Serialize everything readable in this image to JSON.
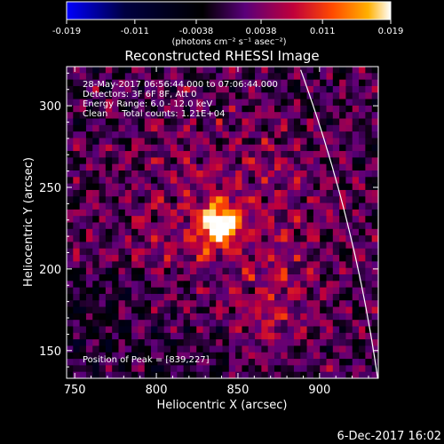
{
  "colorbar": {
    "ticks": [
      "-0.019",
      "-0.011",
      "-0.0038",
      "0.0038",
      "0.011",
      "0.019"
    ],
    "tick_values": [
      -0.019,
      -0.011,
      -0.0038,
      0.0038,
      0.011,
      0.019
    ],
    "range": [
      -0.019,
      0.019
    ],
    "units": "(photons cm⁻² s⁻¹ asec⁻²)",
    "colors": [
      "#0000ff",
      "#000000",
      "#5a007a",
      "#c0003a",
      "#ff4a00",
      "#ffb000",
      "#ffffff"
    ]
  },
  "chart_data": {
    "type": "heatmap",
    "title": "Reconstructed RHESSI Image",
    "xlabel": "Heliocentric X (arcsec)",
    "ylabel": "Heliocentric Y (arcsec)",
    "xlim": [
      745,
      936
    ],
    "ylim": [
      133,
      324
    ],
    "x_ticks": [
      750,
      800,
      850,
      900
    ],
    "y_ticks": [
      150,
      200,
      250,
      300
    ],
    "info_lines": [
      "28-May-2017 06:56:44.000 to 07:06:44.000",
      "Detectors: 3F 6F 8F, Att 0",
      "Energy Range: 6.0 - 12.0 keV",
      "Clean     Total counts: 1.21E+04"
    ],
    "peak_label": "Position of Peak = [839,227]",
    "peak": {
      "x": 839,
      "y": 227
    },
    "limb_color": "#ffffff"
  },
  "footer": {
    "date": "6-Dec-2017 16:02"
  }
}
